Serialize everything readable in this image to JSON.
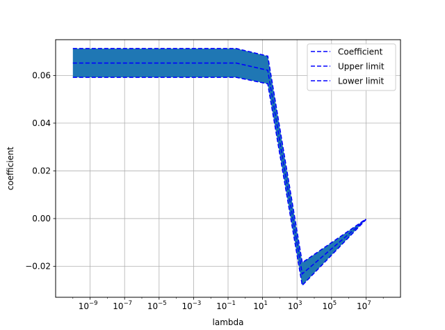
{
  "chart_data": {
    "type": "line",
    "xlabel": "lambda",
    "ylabel": "coefficient",
    "xscale": "log",
    "xlim": [
      1e-11,
      1000000000.0
    ],
    "ylim": [
      -0.033,
      0.075
    ],
    "grid": true,
    "legend_position": "top-right",
    "x_ticks": [
      {
        "value": 1e-09,
        "base": "10",
        "exp": "−9"
      },
      {
        "value": 1e-07,
        "base": "10",
        "exp": "−7"
      },
      {
        "value": 1e-05,
        "base": "10",
        "exp": "−5"
      },
      {
        "value": 0.001,
        "base": "10",
        "exp": "−3"
      },
      {
        "value": 0.1,
        "base": "10",
        "exp": "−1"
      },
      {
        "value": 10.0,
        "base": "10",
        "exp": "1"
      },
      {
        "value": 1000.0,
        "base": "10",
        "exp": "3"
      },
      {
        "value": 100000.0,
        "base": "10",
        "exp": "5"
      },
      {
        "value": 10000000.0,
        "base": "10",
        "exp": "7"
      }
    ],
    "y_ticks": [
      {
        "value": 0.06,
        "label": "0.06"
      },
      {
        "value": 0.04,
        "label": "0.04"
      },
      {
        "value": 0.02,
        "label": "0.02"
      },
      {
        "value": 0.0,
        "label": "0.00"
      },
      {
        "value": -0.02,
        "label": "−0.02"
      }
    ],
    "x": [
      1e-10,
      0.3,
      20,
      2000,
      10000000.0
    ],
    "band_color": "#1f77b4",
    "line_color": "#0000ff",
    "series": [
      {
        "name": "Coefficient",
        "values": [
          0.0652,
          0.0652,
          0.0622,
          -0.0232,
          -0.0003
        ]
      },
      {
        "name": "Upper limit",
        "values": [
          0.0713,
          0.0713,
          0.0681,
          -0.0185,
          -0.0002
        ]
      },
      {
        "name": "Lower limit",
        "values": [
          0.0592,
          0.0592,
          0.0565,
          -0.028,
          -0.0004
        ]
      }
    ]
  }
}
